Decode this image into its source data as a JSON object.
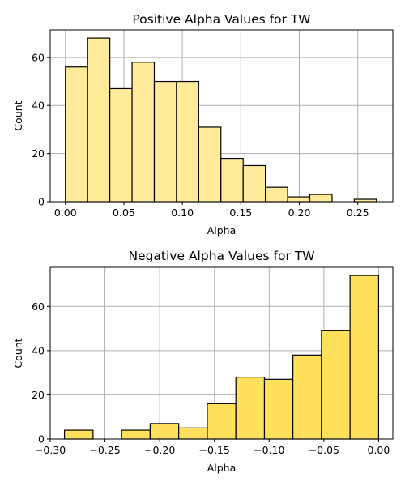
{
  "colors": {
    "positive_fill": "#ffeb99",
    "negative_fill": "#ffe05c"
  },
  "chart_data": [
    {
      "type": "bar",
      "title": "Positive Alpha Values for TW",
      "xlabel": "Alpha",
      "ylabel": "Count",
      "bin_edges": [
        0.0,
        0.019,
        0.038,
        0.057,
        0.076,
        0.095,
        0.114,
        0.133,
        0.152,
        0.171,
        0.19,
        0.209,
        0.228,
        0.247,
        0.266
      ],
      "values": [
        56,
        68,
        47,
        58,
        50,
        50,
        31,
        18,
        15,
        6,
        2,
        3,
        0,
        1
      ],
      "xlim": [
        -0.013,
        0.28
      ],
      "ylim": [
        0,
        71.4
      ],
      "xticks": [
        0.0,
        0.05,
        0.1,
        0.15,
        0.2,
        0.25
      ],
      "xtick_labels": [
        "0.00",
        "0.05",
        "0.10",
        "0.15",
        "0.20",
        "0.25"
      ],
      "yticks": [
        0,
        20,
        40,
        60
      ],
      "ytick_labels": [
        "0",
        "20",
        "40",
        "60"
      ],
      "grid": true,
      "legend": "none"
    },
    {
      "type": "bar",
      "title": "Negative Alpha Values for TW",
      "xlabel": "Alpha",
      "ylabel": "Count",
      "bin_edges": [
        -0.287,
        -0.2609,
        -0.2348,
        -0.2087,
        -0.1826,
        -0.1565,
        -0.1304,
        -0.1043,
        -0.0783,
        -0.0522,
        -0.0261,
        0.0
      ],
      "values": [
        4,
        0,
        4,
        7,
        5,
        16,
        28,
        27,
        38,
        49,
        74
      ],
      "xlim": [
        -0.3,
        0.013
      ],
      "ylim": [
        0,
        77.7
      ],
      "xticks": [
        -0.3,
        -0.25,
        -0.2,
        -0.15,
        -0.1,
        -0.05,
        0.0
      ],
      "xtick_labels": [
        "−0.30",
        "−0.25",
        "−0.20",
        "−0.15",
        "−0.10",
        "−0.05",
        "0.00"
      ],
      "yticks": [
        0,
        20,
        40,
        60
      ],
      "ytick_labels": [
        "0",
        "20",
        "40",
        "60"
      ],
      "grid": true,
      "legend": "none"
    }
  ]
}
